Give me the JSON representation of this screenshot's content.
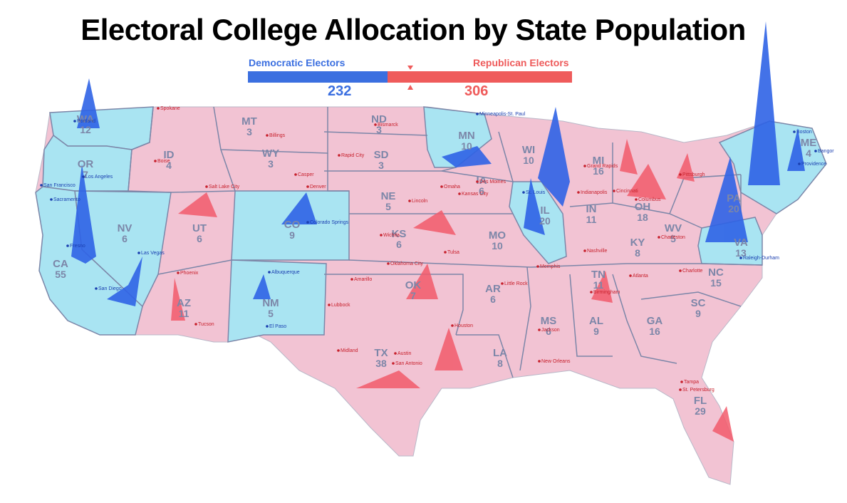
{
  "title": "Electoral College Allocation by State Population",
  "tally": {
    "dem_label": "Democratic Electors",
    "rep_label": "Republican Electors",
    "dem_value": "232",
    "rep_value": "306",
    "dem_color": "#3b6fe0",
    "rep_color": "#ef5b5b"
  },
  "colors": {
    "dem_fill": "#a9e4f2",
    "rep_fill": "#f2c3d3",
    "dem_peak": "#2f63e6",
    "rep_peak": "#f25b6b",
    "border": "#7c86a8"
  },
  "states": [
    {
      "abbr": "WA",
      "ev": "12",
      "party": "D"
    },
    {
      "abbr": "OR",
      "ev": "7",
      "party": "D"
    },
    {
      "abbr": "CA",
      "ev": "55",
      "party": "D"
    },
    {
      "abbr": "NV",
      "ev": "6",
      "party": "D"
    },
    {
      "abbr": "ID",
      "ev": "4",
      "party": "R"
    },
    {
      "abbr": "MT",
      "ev": "3",
      "party": "R"
    },
    {
      "abbr": "WY",
      "ev": "3",
      "party": "R"
    },
    {
      "abbr": "UT",
      "ev": "6",
      "party": "R"
    },
    {
      "abbr": "CO",
      "ev": "9",
      "party": "D"
    },
    {
      "abbr": "AZ",
      "ev": "11",
      "party": "R"
    },
    {
      "abbr": "NM",
      "ev": "5",
      "party": "D"
    },
    {
      "abbr": "ND",
      "ev": "3",
      "party": "R"
    },
    {
      "abbr": "SD",
      "ev": "3",
      "party": "R"
    },
    {
      "abbr": "NE",
      "ev": "5",
      "party": "R"
    },
    {
      "abbr": "KS",
      "ev": "6",
      "party": "R"
    },
    {
      "abbr": "OK",
      "ev": "7",
      "party": "R"
    },
    {
      "abbr": "TX",
      "ev": "38",
      "party": "R"
    },
    {
      "abbr": "MN",
      "ev": "10",
      "party": "D"
    },
    {
      "abbr": "IA",
      "ev": "6",
      "party": "R"
    },
    {
      "abbr": "MO",
      "ev": "10",
      "party": "R"
    },
    {
      "abbr": "AR",
      "ev": "6",
      "party": "R"
    },
    {
      "abbr": "LA",
      "ev": "8",
      "party": "R"
    },
    {
      "abbr": "WI",
      "ev": "10",
      "party": "R"
    },
    {
      "abbr": "IL",
      "ev": "20",
      "party": "D"
    },
    {
      "abbr": "MI",
      "ev": "16",
      "party": "R"
    },
    {
      "abbr": "IN",
      "ev": "11",
      "party": "R"
    },
    {
      "abbr": "OH",
      "ev": "18",
      "party": "R"
    },
    {
      "abbr": "KY",
      "ev": "8",
      "party": "R"
    },
    {
      "abbr": "TN",
      "ev": "11",
      "party": "R"
    },
    {
      "abbr": "MS",
      "ev": "6",
      "party": "R"
    },
    {
      "abbr": "AL",
      "ev": "9",
      "party": "R"
    },
    {
      "abbr": "GA",
      "ev": "16",
      "party": "R"
    },
    {
      "abbr": "FL",
      "ev": "29",
      "party": "R"
    },
    {
      "abbr": "SC",
      "ev": "9",
      "party": "R"
    },
    {
      "abbr": "NC",
      "ev": "15",
      "party": "R"
    },
    {
      "abbr": "VA",
      "ev": "13",
      "party": "D"
    },
    {
      "abbr": "WV",
      "ev": "5",
      "party": "R"
    },
    {
      "abbr": "PA",
      "ev": "20",
      "party": "R"
    },
    {
      "abbr": "ME",
      "ev": "4",
      "party": "D"
    }
  ],
  "cities": [
    "Spokane",
    "Portland",
    "San Francisco",
    "Sacramento",
    "Los Angeles",
    "Fresno",
    "Las Vegas",
    "San Diego",
    "Boise",
    "Billings",
    "Salt Lake City",
    "Casper",
    "Denver",
    "Colorado Springs",
    "Phoenix",
    "Tucson",
    "Albuquerque",
    "El Paso",
    "Bismarck",
    "Rapid City",
    "Omaha",
    "Lincoln",
    "Des Moines",
    "Kansas City",
    "Wichita",
    "Tulsa",
    "Oklahoma City",
    "Amarillo",
    "Lubbock",
    "Midland",
    "Austin",
    "San Antonio",
    "Houston",
    "New Orleans",
    "Jackson",
    "Little Rock",
    "Memphis",
    "Nashville",
    "St. Louis",
    "Minneapolis-St. Paul",
    "Grand Rapids",
    "Indianapolis",
    "Cincinnati",
    "Columbus",
    "Pittsburgh",
    "Charleston",
    "Atlanta",
    "Birmingham",
    "Charlotte",
    "Raleigh-Durham",
    "Tampa",
    "St. Petersburg",
    "Boston",
    "Bangor",
    "Providence"
  ]
}
